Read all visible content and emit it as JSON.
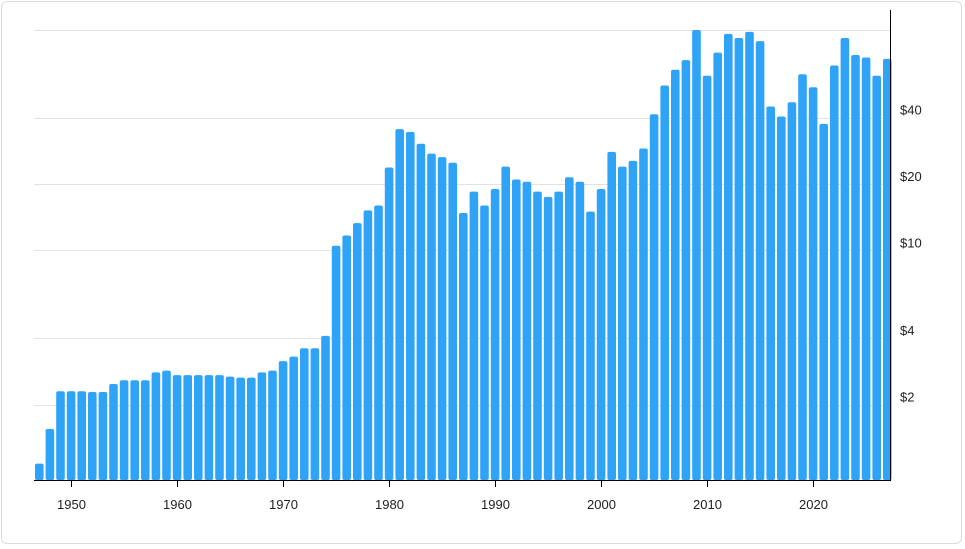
{
  "chart_data": {
    "type": "bar",
    "title": "",
    "xlabel": "",
    "ylabel": "",
    "y_scale": "log",
    "grid": true,
    "ylim": [
      0.91,
      100
    ],
    "y_ticks": [
      {
        "value": 2,
        "label": "$2"
      },
      {
        "value": 4,
        "label": "$4"
      },
      {
        "value": 10,
        "label": "$10"
      },
      {
        "value": 20,
        "label": "$20"
      },
      {
        "value": 40,
        "label": "$40"
      }
    ],
    "grid_values": [
      2,
      4,
      10,
      20,
      40,
      100
    ],
    "x_ticks": [
      {
        "value": 1950,
        "label": "1950"
      },
      {
        "value": 1960,
        "label": "1960"
      },
      {
        "value": 1970,
        "label": "1970"
      },
      {
        "value": 1980,
        "label": "1980"
      },
      {
        "value": 1990,
        "label": "1990"
      },
      {
        "value": 2000,
        "label": "2000"
      },
      {
        "value": 2010,
        "label": "2010"
      },
      {
        "value": 2020,
        "label": "2020"
      }
    ],
    "x": [
      1947,
      1948,
      1949,
      1950,
      1951,
      1952,
      1953,
      1954,
      1955,
      1956,
      1957,
      1958,
      1959,
      1960,
      1961,
      1962,
      1963,
      1964,
      1965,
      1966,
      1967,
      1968,
      1969,
      1970,
      1971,
      1972,
      1973,
      1974,
      1975,
      1976,
      1977,
      1978,
      1979,
      1980,
      1981,
      1982,
      1983,
      1984,
      1985,
      1986,
      1987,
      1988,
      1989,
      1990,
      1991,
      1992,
      1993,
      1994,
      1995,
      1996,
      1997,
      1998,
      1999,
      2000,
      2001,
      2002,
      2003,
      2004,
      2005,
      2006,
      2007,
      2008,
      2009,
      2010,
      2011,
      2012,
      2013,
      2014,
      2015,
      2016,
      2017,
      2018,
      2019,
      2020,
      2021,
      2022,
      2023,
      2024,
      2025,
      2026,
      2027
    ],
    "values": [
      1.08,
      1.55,
      2.3,
      2.3,
      2.3,
      2.28,
      2.28,
      2.48,
      2.58,
      2.58,
      2.58,
      2.8,
      2.85,
      2.72,
      2.72,
      2.72,
      2.72,
      2.72,
      2.68,
      2.65,
      2.65,
      2.8,
      2.85,
      3.15,
      3.3,
      3.6,
      3.6,
      4.1,
      10.5,
      11.7,
      13.3,
      15.2,
      16.0,
      23.8,
      35.5,
      34.5,
      30.5,
      27.5,
      26.5,
      25.0,
      14.8,
      18.5,
      16.0,
      19.0,
      24.0,
      21.0,
      20.5,
      18.5,
      17.5,
      18.5,
      21.5,
      20.5,
      15.0,
      19.0,
      28.0,
      24.0,
      25.5,
      29.0,
      41.5,
      56.0,
      66.0,
      73.0,
      100.0,
      62.0,
      79.0,
      96.0,
      92.0,
      98.0,
      89.0,
      45.0,
      40.5,
      47.0,
      63.0,
      55.0,
      37.5,
      69.0,
      92.0,
      77.0,
      75.0,
      62.0,
      74.0
    ],
    "bar_color": "#2fa4f6",
    "grid_color": "#e2e2e2",
    "axis_color": "#000000"
  }
}
